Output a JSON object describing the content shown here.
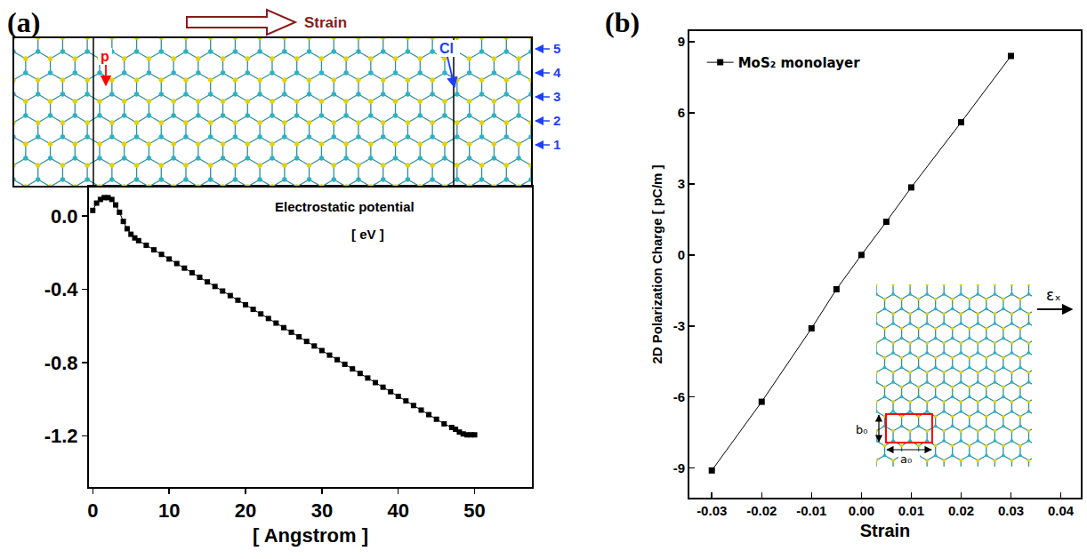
{
  "chart_data": [
    {
      "type": "line",
      "panel": "(a)",
      "marker": "square",
      "color": "#000000",
      "grid": false,
      "xlabel": "[ Angstrom ]",
      "annotations": [
        "Electrostatic potential",
        "[ eV ]"
      ],
      "diagram": {
        "arrow_label": "Strain",
        "labels": [
          {
            "text": "p",
            "color": "#ff0000"
          },
          {
            "text": "Cl",
            "color": "#1f3fff"
          }
        ],
        "rows": [
          "5",
          "4",
          "3",
          "2",
          "1"
        ]
      },
      "x": [
        0,
        0.5,
        1,
        1.5,
        2,
        2.5,
        3,
        3.5,
        4,
        4.5,
        5,
        5.5,
        6,
        7,
        8,
        9,
        10,
        11,
        12,
        13,
        14,
        15,
        16,
        17,
        18,
        19,
        20,
        21,
        22,
        23,
        24,
        25,
        26,
        27,
        28,
        29,
        30,
        31,
        32,
        33,
        34,
        35,
        36,
        37,
        38,
        39,
        40,
        41,
        42,
        43,
        44,
        45,
        46,
        47,
        47.5,
        48,
        48.5,
        49,
        49.5,
        50
      ],
      "values": [
        0.03,
        0.07,
        0.09,
        0.1,
        0.1,
        0.09,
        0.06,
        0.02,
        -0.03,
        -0.07,
        -0.1,
        -0.12,
        -0.135,
        -0.16,
        -0.185,
        -0.21,
        -0.235,
        -0.26,
        -0.285,
        -0.31,
        -0.335,
        -0.36,
        -0.385,
        -0.41,
        -0.435,
        -0.46,
        -0.485,
        -0.51,
        -0.535,
        -0.56,
        -0.585,
        -0.61,
        -0.635,
        -0.66,
        -0.685,
        -0.71,
        -0.735,
        -0.76,
        -0.785,
        -0.81,
        -0.835,
        -0.86,
        -0.885,
        -0.91,
        -0.935,
        -0.96,
        -0.985,
        -1.01,
        -1.035,
        -1.06,
        -1.085,
        -1.11,
        -1.135,
        -1.155,
        -1.165,
        -1.18,
        -1.19,
        -1.195,
        -1.195,
        -1.195
      ],
      "xlim": [
        -0.5,
        57.5
      ],
      "ylim": [
        -1.48,
        0.16
      ],
      "xticks": [
        0,
        10,
        20,
        30,
        40,
        50
      ],
      "yticks": [
        {
          "value": 0,
          "label": "0.0"
        },
        -0.4,
        -0.8,
        -1.2
      ]
    },
    {
      "type": "line",
      "panel": "(b)",
      "marker": "square",
      "grid": false,
      "legend": "upper left",
      "xlabel": "Strain",
      "ylabel": "2D Polarization Charge [ pC/m ]",
      "inset": {
        "labels": [
          "b₀",
          "a₀"
        ],
        "arrow_label": "εₓ"
      },
      "x": [
        -0.03,
        -0.02,
        -0.01,
        -0.005,
        0,
        0.005,
        0.01,
        0.02,
        0.03
      ],
      "series": [
        {
          "name": "MoS₂ monolayer",
          "color": "#000000",
          "values": [
            -9.1,
            -6.2,
            -3.1,
            -1.45,
            0,
            1.4,
            2.85,
            5.6,
            8.4
          ]
        }
      ],
      "xlim": [
        -0.0345,
        0.044
      ],
      "ylim": [
        -10.25,
        9.45
      ],
      "xticks": [
        -0.03,
        -0.02,
        -0.01,
        {
          "value": 0,
          "label": "0.00"
        },
        0.01,
        0.02,
        0.03,
        0.04
      ],
      "yticks": [
        -9,
        -6,
        -3,
        0,
        3,
        6,
        9
      ]
    }
  ]
}
